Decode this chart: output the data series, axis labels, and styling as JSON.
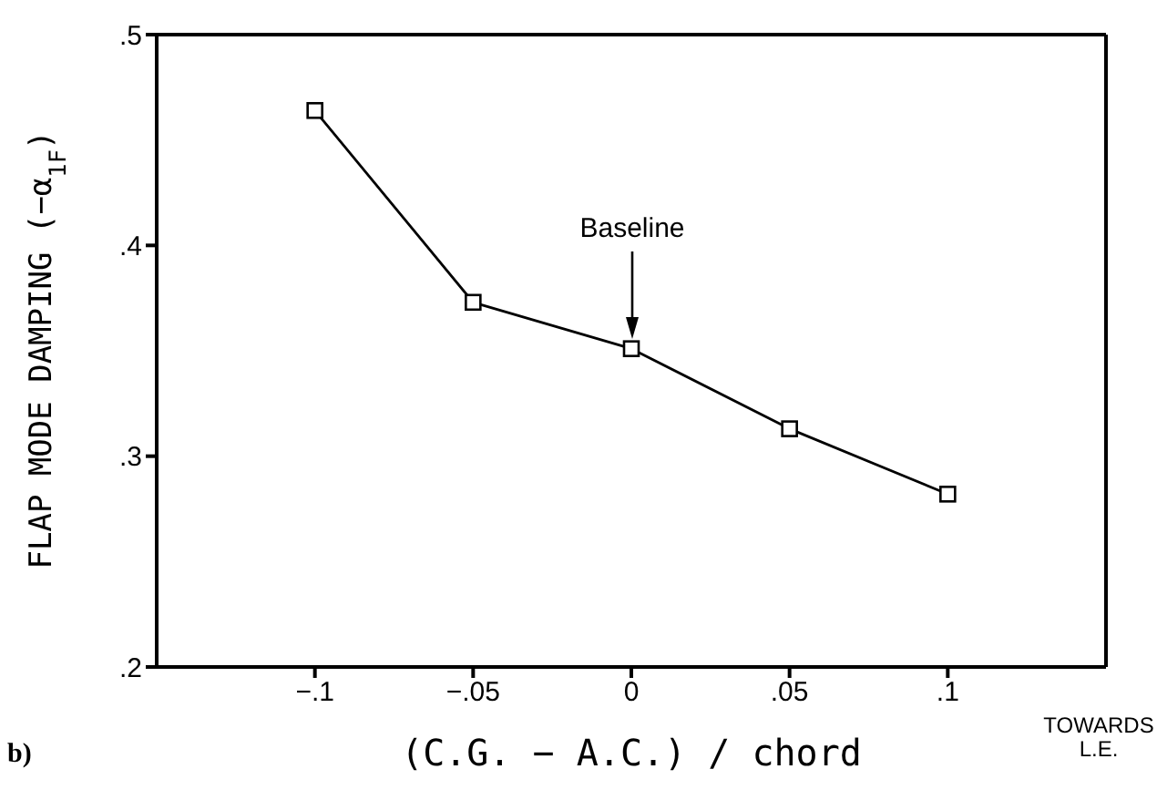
{
  "chart_data": {
    "type": "line",
    "xlabel": "(C.G. − A.C.) / chord",
    "ylabel": "FLAP MODE DAMPING (−α$_{1F}$)",
    "x": [
      -0.1,
      -0.05,
      0,
      0.05,
      0.1
    ],
    "series": [
      {
        "color": "#000000",
        "values": [
          0.464,
          0.373,
          0.351,
          0.313,
          0.282
        ]
      }
    ],
    "xlim": [
      -0.15,
      0.15
    ],
    "xticks": [
      {
        "value": -0.1,
        "label": "−.1"
      },
      {
        "value": -0.05,
        "label": "−.05"
      },
      0,
      {
        "value": 0.05,
        "label": ".05"
      },
      {
        "value": 0.1,
        "label": ".1"
      }
    ],
    "ylim": [
      0.2,
      0.5
    ],
    "yticks": [
      {
        "value": 0.2,
        "label": ".2"
      },
      {
        "value": 0.3,
        "label": ".3"
      },
      {
        "value": 0.4,
        "label": ".4"
      },
      {
        "value": 0.5,
        "label": ".5"
      }
    ],
    "marker": "square",
    "line_style": "solid",
    "grid": false,
    "legend": false,
    "annotations": [
      "Baseline",
      "TOWARDS L.E.",
      "b)"
    ]
  }
}
